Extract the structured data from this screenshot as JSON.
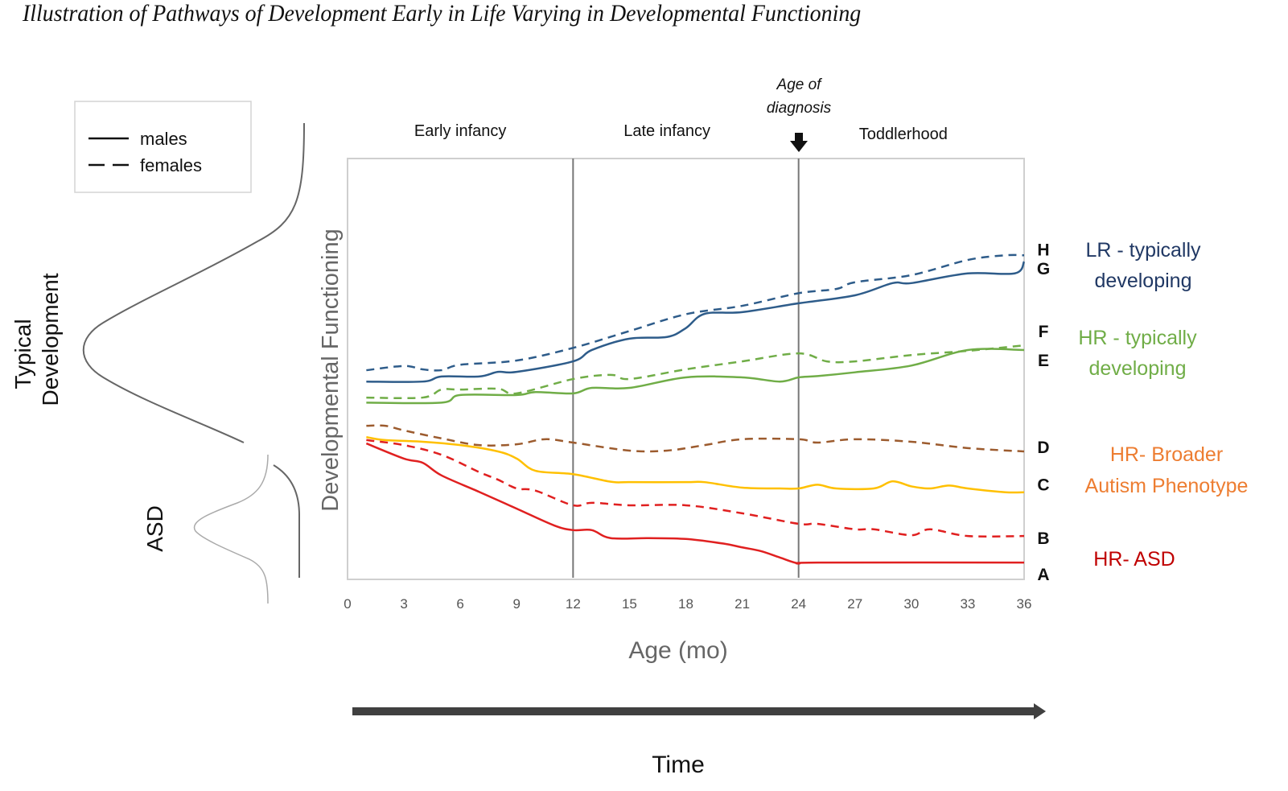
{
  "title": "Illustration of Pathways of Development Early in Life Varying in Developmental Functioning",
  "legend": {
    "items": [
      {
        "label": "males",
        "style": "solid"
      },
      {
        "label": "females",
        "style": "dashed"
      }
    ]
  },
  "distribution_labels": {
    "typical_line1": "Typical",
    "typical_line2": "Development",
    "asd": "ASD"
  },
  "periods": [
    {
      "label": "Early infancy",
      "x_center": 6
    },
    {
      "label": "Late infancy",
      "x_center": 17
    },
    {
      "label": "Toddlerhood",
      "x_center": 30
    }
  ],
  "annotation": {
    "line1": "Age of",
    "line2": "diagnosis",
    "at": 24
  },
  "time_arrow_label": "Time",
  "chart_data": {
    "type": "line",
    "title": "Illustration of Pathways of Development Early in Life Varying in Developmental Functioning",
    "xlabel": "Age (mo)",
    "ylabel": "Developmental Functioning",
    "xlim": [
      0,
      36
    ],
    "ylim": [
      0,
      100
    ],
    "xticks": [
      0,
      3,
      6,
      9,
      12,
      15,
      18,
      21,
      24,
      27,
      30,
      33,
      36
    ],
    "vlines": [
      12,
      24
    ],
    "grid": false,
    "legend_position": "top-left",
    "groups": [
      {
        "name": "LR - typically developing",
        "color": "#203864",
        "letters": [
          "H",
          "G"
        ]
      },
      {
        "name": "HR - typically developing",
        "color": "#70ad47",
        "letters": [
          "F",
          "E"
        ]
      },
      {
        "name": "HR- Broader Autism Phenotype",
        "color": "#ed7d31",
        "letters": [
          "D",
          "C"
        ]
      },
      {
        "name": "HR- ASD",
        "color": "#c00000",
        "letters": [
          "B",
          "A"
        ]
      }
    ],
    "series": [
      {
        "name": "H",
        "group": "LR - typically developing",
        "sex": "females",
        "style": "dashed",
        "color": "#2e5c8a",
        "x": [
          1,
          3,
          4,
          5,
          6,
          9,
          12,
          15,
          18,
          21,
          24,
          26,
          27,
          30,
          33,
          35,
          36
        ],
        "y": [
          49.7,
          50.7,
          49.9,
          49.7,
          51,
          52,
          55,
          59,
          63,
          65,
          68,
          69,
          70.6,
          72.3,
          75.9,
          77,
          77
        ]
      },
      {
        "name": "G",
        "group": "LR - typically developing",
        "sex": "males",
        "style": "solid",
        "color": "#2e5c8a",
        "x": [
          1,
          4,
          5,
          7,
          8,
          9,
          12,
          13,
          15,
          17,
          18,
          19,
          21,
          24,
          27,
          29,
          30,
          33,
          35.5,
          36
        ],
        "y": [
          47,
          47,
          48.2,
          48.2,
          49.3,
          49.3,
          51.8,
          54.5,
          57.2,
          57.6,
          59.7,
          63.1,
          63.5,
          65.6,
          67.5,
          70.4,
          70.4,
          72.7,
          72.7,
          75.5
        ]
      },
      {
        "name": "F",
        "group": "HR - typically developing",
        "sex": "females",
        "style": "dashed",
        "color": "#70ad47",
        "x": [
          1,
          4,
          5,
          6,
          8,
          9,
          12,
          14,
          15,
          18,
          21,
          24,
          25.5,
          27,
          30,
          33,
          36
        ],
        "y": [
          43.2,
          43.2,
          45.1,
          45.1,
          45.3,
          44.2,
          47.6,
          48.6,
          47.6,
          49.9,
          51.8,
          53.7,
          51.8,
          51.8,
          53.3,
          54.3,
          55.6
        ]
      },
      {
        "name": "E",
        "group": "HR - typically developing",
        "sex": "males",
        "style": "solid",
        "color": "#70ad47",
        "x": [
          1,
          5,
          6,
          9,
          10,
          12,
          13,
          15,
          18,
          21,
          23,
          24,
          25,
          27,
          30,
          33,
          36
        ],
        "y": [
          42,
          42,
          43.8,
          43.8,
          44.5,
          44.2,
          45.5,
          45.5,
          48,
          48,
          47,
          48,
          48.3,
          49.2,
          50.8,
          54.5,
          54.5
        ]
      },
      {
        "name": "D",
        "group": "HR- Broader Autism Phenotype",
        "sex": "females",
        "style": "dashed",
        "color": "#9c5b2e",
        "x": [
          1,
          2,
          3,
          5,
          7,
          9,
          10.5,
          12,
          15,
          17,
          19,
          21,
          24,
          25,
          27,
          30,
          33,
          36
        ],
        "y": [
          36.5,
          36.5,
          35.4,
          33.5,
          31.9,
          32.1,
          33.3,
          32.5,
          30.6,
          30.6,
          31.9,
          33.3,
          33.3,
          32.5,
          33.3,
          32.7,
          31.2,
          30.4
        ]
      },
      {
        "name": "C",
        "group": "HR- Broader Autism Phenotype",
        "sex": "males",
        "style": "solid",
        "color": "#ffc000",
        "x": [
          1,
          2,
          4,
          6,
          8,
          9,
          10,
          12,
          14,
          15,
          18,
          19,
          21,
          23,
          24,
          25,
          26,
          28,
          29,
          30,
          31,
          32,
          33,
          35,
          36
        ],
        "y": [
          33.8,
          33.1,
          32.7,
          31.9,
          30.4,
          28.7,
          25.8,
          25,
          23.2,
          23.1,
          23.1,
          23.1,
          21.8,
          21.6,
          21.6,
          22.5,
          21.6,
          21.6,
          23.3,
          22.1,
          21.6,
          22.3,
          21.6,
          20.7,
          20.7
        ]
      },
      {
        "name": "B",
        "group": "HR- ASD",
        "sex": "females",
        "style": "dashed",
        "color": "#e02020",
        "x": [
          1,
          3,
          5,
          7,
          8,
          9,
          10,
          12,
          13,
          15,
          18,
          21,
          24,
          25,
          27,
          28,
          30,
          31,
          33,
          36
        ],
        "y": [
          33.1,
          31.9,
          29.6,
          25.5,
          23.7,
          21.6,
          21.1,
          17.6,
          18.2,
          17.6,
          17.6,
          15.7,
          13.2,
          13.2,
          11.9,
          11.9,
          10.5,
          11.9,
          10.3,
          10.3
        ]
      },
      {
        "name": "A",
        "group": "HR- ASD",
        "sex": "males",
        "style": "solid",
        "color": "#e02020",
        "x": [
          1,
          3,
          4,
          5,
          7,
          9,
          11,
          12,
          13,
          14,
          16,
          18,
          20,
          21,
          22,
          23,
          24,
          25,
          36
        ],
        "y": [
          32.3,
          28.7,
          27.7,
          24.7,
          20.8,
          16.8,
          12.8,
          11.7,
          11.7,
          9.8,
          9.8,
          9.6,
          8.5,
          7.6,
          6.7,
          5.2,
          3.8,
          4,
          4
        ]
      }
    ]
  }
}
